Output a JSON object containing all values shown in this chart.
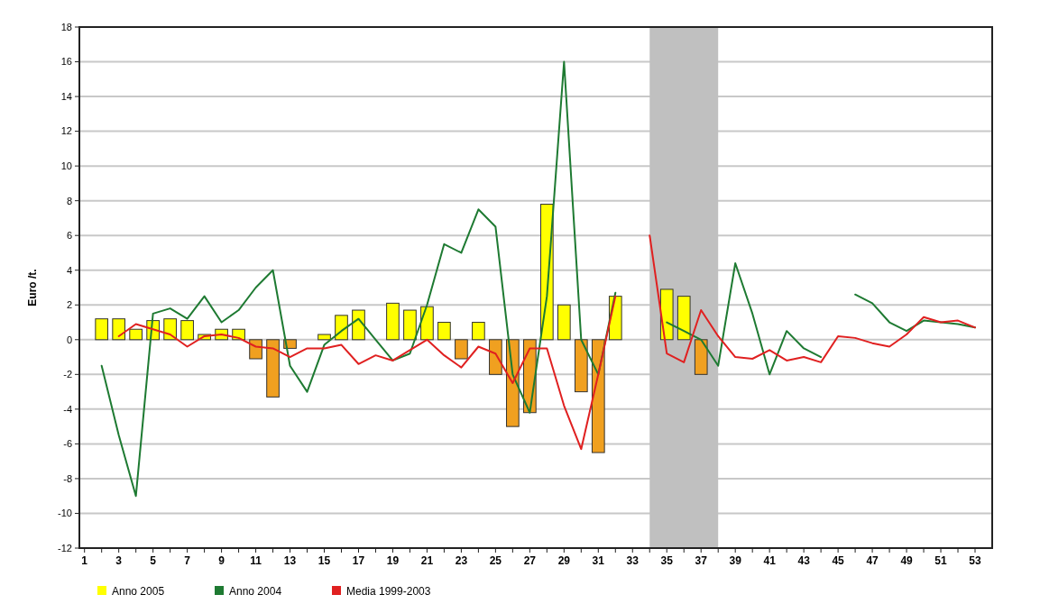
{
  "chart_data": {
    "type": "bar",
    "ylabel": "Euro /t.",
    "x": [
      2,
      3,
      4,
      5,
      6,
      7,
      8,
      9,
      10,
      11,
      12,
      13,
      14,
      15,
      16,
      17,
      18,
      19,
      20,
      21,
      22,
      23,
      24,
      25,
      26,
      27,
      28,
      29,
      30,
      31,
      32,
      34,
      35,
      36,
      37,
      38,
      39,
      40,
      41,
      42,
      43,
      44,
      45,
      46,
      47,
      48,
      49,
      50,
      51,
      52,
      53
    ],
    "xlim": [
      0.7,
      54
    ],
    "xticks": [
      1,
      {
        "value": 2,
        "label": null
      },
      3,
      {
        "value": 4,
        "label": null
      },
      5,
      {
        "value": 6,
        "label": null
      },
      7,
      {
        "value": 8,
        "label": null
      },
      9,
      {
        "value": 10,
        "label": null
      },
      11,
      {
        "value": 12,
        "label": null
      },
      13,
      {
        "value": 14,
        "label": null
      },
      15,
      {
        "value": 16,
        "label": null
      },
      17,
      {
        "value": 18,
        "label": null
      },
      19,
      {
        "value": 20,
        "label": null
      },
      21,
      {
        "value": 22,
        "label": null
      },
      23,
      {
        "value": 24,
        "label": null
      },
      25,
      {
        "value": 26,
        "label": null
      },
      27,
      {
        "value": 28,
        "label": null
      },
      29,
      {
        "value": 30,
        "label": null
      },
      31,
      {
        "value": 32,
        "label": null
      },
      33,
      {
        "value": 34,
        "label": null
      },
      35,
      {
        "value": 36,
        "label": null
      },
      37,
      {
        "value": 38,
        "label": null
      },
      39,
      {
        "value": 40,
        "label": null
      },
      41,
      {
        "value": 42,
        "label": null
      },
      43,
      {
        "value": 44,
        "label": null
      },
      45,
      {
        "value": 46,
        "label": null
      },
      47,
      {
        "value": 48,
        "label": null
      },
      49,
      {
        "value": 50,
        "label": null
      },
      51,
      {
        "value": 52,
        "label": null
      },
      53
    ],
    "ylim": [
      -12,
      18
    ],
    "yticks": [
      -12,
      -10,
      -8,
      -6,
      -4,
      -2,
      0,
      2,
      4,
      6,
      8,
      10,
      12,
      14,
      16,
      18
    ],
    "grid": "y",
    "legend": "bottom",
    "bands": [
      {
        "axis": "x",
        "from": 34,
        "to": 38,
        "color": "#c0c0c0"
      }
    ],
    "series": [
      {
        "name": "Anno 2005",
        "color": "#ffff00",
        "values": [
          1.2,
          1.2,
          0.6,
          1.1,
          1.2,
          1.1,
          0.3,
          0.6,
          0.6,
          -1.1,
          -3.3,
          -0.5,
          null,
          0.3,
          1.4,
          1.7,
          null,
          2.1,
          1.7,
          1.9,
          1.0,
          -1.1,
          1.0,
          -2.0,
          -5.0,
          -4.2,
          7.8,
          2.0,
          -3.0,
          -6.5,
          2.5,
          null,
          2.9,
          2.5,
          -2.0,
          null,
          null,
          null,
          null,
          null,
          null,
          null,
          null,
          null,
          null,
          null,
          null,
          null,
          null,
          null,
          null
        ],
        "colors": [
          "#ffff00",
          "#ffff00",
          "#ffff00",
          "#ffff00",
          "#ffff00",
          "#ffff00",
          "#ffff00",
          "#ffff00",
          "#ffff00",
          "#f0a020",
          "#f0a020",
          "#f0a020",
          null,
          "#ffff00",
          "#ffff00",
          "#ffff00",
          null,
          "#ffff00",
          "#ffff00",
          "#ffff00",
          "#ffff00",
          "#f0a020",
          "#ffff00",
          "#f0a020",
          "#f0a020",
          "#f0a020",
          "#ffff00",
          "#ffff00",
          "#f0a020",
          "#f0a020",
          "#ffff00",
          null,
          "#ffff00",
          "#ffff00",
          "#f0a020",
          null,
          null,
          null,
          null,
          null,
          null,
          null,
          null,
          null,
          null,
          null,
          null,
          null,
          null,
          null,
          null
        ]
      },
      {
        "name": "Anno 2004",
        "type": "line",
        "color": "#1e7a32",
        "values": [
          -1.5,
          -5.5,
          -9.0,
          1.5,
          1.8,
          1.2,
          2.5,
          1.0,
          1.7,
          3.0,
          4.0,
          -1.5,
          -3.0,
          -0.3,
          0.5,
          1.2,
          0.0,
          -1.2,
          -0.8,
          2.0,
          5.5,
          5.0,
          7.5,
          6.5,
          -2.0,
          -4.2,
          2.5,
          16.0,
          0.0,
          -2.0,
          2.7,
          null,
          1.0,
          0.5,
          0.0,
          -1.5,
          4.4,
          1.5,
          -2.0,
          0.5,
          -0.5,
          -1.0,
          null,
          2.6,
          2.1,
          1.0,
          0.5,
          1.1,
          1.0,
          0.9,
          0.7
        ]
      },
      {
        "name": "Media 1999-2003",
        "type": "line",
        "color": "#e02020",
        "values": [
          null,
          0.2,
          0.9,
          0.6,
          0.3,
          -0.4,
          0.2,
          0.3,
          0.1,
          -0.4,
          -0.5,
          -1.0,
          -0.5,
          -0.5,
          -0.3,
          -1.4,
          -0.9,
          -1.2,
          -0.6,
          0.0,
          -0.9,
          -1.6,
          -0.4,
          -0.8,
          -2.5,
          -0.5,
          -0.5,
          -3.8,
          -6.3,
          -2.0,
          2.5,
          6.0,
          -0.8,
          -1.3,
          1.7,
          0.2,
          -1.0,
          -1.1,
          -0.6,
          -1.2,
          -1.0,
          -1.3,
          0.2,
          0.1,
          -0.2,
          -0.4,
          0.3,
          1.3,
          1.0,
          1.1,
          0.7
        ]
      }
    ]
  }
}
